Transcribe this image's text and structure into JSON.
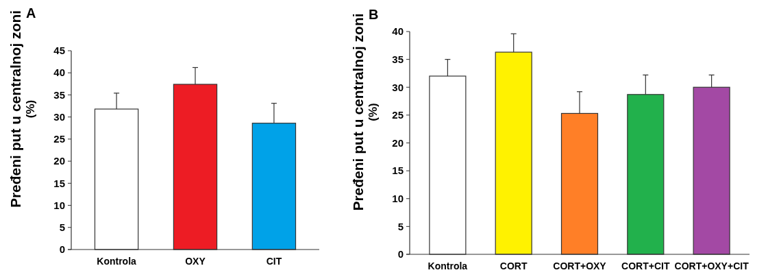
{
  "chart_data": [
    {
      "type": "bar",
      "title": "A",
      "ylabel": "Pređeni put u centralnoj zoni (%)",
      "categories": [
        "Kontrola",
        "OXY",
        "CIT"
      ],
      "values": [
        31.8,
        37.4,
        28.6
      ],
      "colors": [
        "#ffffff",
        "#ed1c24",
        "#00a2e8"
      ],
      "errors": [
        [
          31.8,
          35.4
        ],
        [
          37.4,
          41.2
        ],
        [
          28.6,
          33.1
        ]
      ],
      "ylim": [
        0,
        45
      ],
      "yticks": [
        0,
        5,
        10,
        15,
        20,
        25,
        30,
        35,
        40,
        45
      ],
      "grid": false
    },
    {
      "type": "bar",
      "title": "B",
      "ylabel": "Pređeni put u centralnoj zoni (%)",
      "categories": [
        "Kontrola",
        "CORT",
        "CORT+OXY",
        "CORT+CIT",
        "CORT+OXY+CIT"
      ],
      "values": [
        32.0,
        36.3,
        25.3,
        28.7,
        30.0
      ],
      "colors": [
        "#ffffff",
        "#fff200",
        "#ff7f27",
        "#22b14c",
        "#a349a4"
      ],
      "errors": [
        [
          32.0,
          35.0
        ],
        [
          36.3,
          39.6
        ],
        [
          25.3,
          29.2
        ],
        [
          28.7,
          32.2
        ],
        [
          30.0,
          32.2
        ]
      ],
      "ylim": [
        0,
        40
      ],
      "yticks": [
        0,
        5,
        10,
        15,
        20,
        25,
        30,
        35,
        40
      ],
      "grid": false
    }
  ]
}
